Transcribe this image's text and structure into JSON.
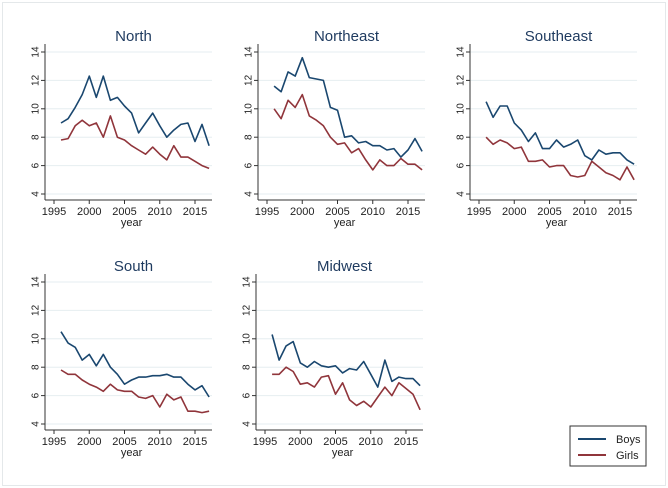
{
  "colors": {
    "boys": "#1a476f",
    "girls": "#90353b",
    "grid": "#e6eef0",
    "axis": "#333333",
    "title": "#1e3a5f"
  },
  "legend": {
    "boys": "Boys",
    "girls": "Girls",
    "placement": "bottom-right"
  },
  "chart_data": [
    {
      "type": "line",
      "title": "North",
      "xlabel": "year",
      "ylabel": "",
      "xlim": [
        1995,
        2018
      ],
      "ylim": [
        4,
        14
      ],
      "xticks": [
        "1995",
        "2000",
        "2005",
        "2010",
        "2015"
      ],
      "yticks": [
        "4",
        "6",
        "8",
        "10",
        "12",
        "14"
      ],
      "x": [
        1996,
        1997,
        1998,
        1999,
        2000,
        2001,
        2002,
        2003,
        2004,
        2005,
        2006,
        2007,
        2008,
        2009,
        2010,
        2011,
        2012,
        2013,
        2014,
        2015,
        2016,
        2017
      ],
      "series": [
        {
          "name": "Boys",
          "values": [
            9.0,
            9.3,
            10.1,
            11.0,
            12.3,
            10.8,
            12.3,
            10.6,
            10.8,
            10.2,
            9.7,
            8.3,
            9.0,
            9.7,
            8.8,
            8.0,
            8.5,
            8.9,
            9.0,
            7.7,
            8.9,
            7.4
          ]
        },
        {
          "name": "Girls",
          "values": [
            7.8,
            7.9,
            8.8,
            9.2,
            8.8,
            9.0,
            8.0,
            9.5,
            8.0,
            7.8,
            7.4,
            7.1,
            6.8,
            7.3,
            6.8,
            6.4,
            7.4,
            6.6,
            6.6,
            6.3,
            6.0,
            5.8
          ]
        }
      ]
    },
    {
      "type": "line",
      "title": "Northeast",
      "xlabel": "year",
      "ylabel": "",
      "xlim": [
        1995,
        2018
      ],
      "ylim": [
        4,
        14
      ],
      "xticks": [
        "1995",
        "2000",
        "2005",
        "2010",
        "2015"
      ],
      "yticks": [
        "4",
        "6",
        "8",
        "10",
        "12",
        "14"
      ],
      "x": [
        1996,
        1997,
        1998,
        1999,
        2000,
        2001,
        2002,
        2003,
        2004,
        2005,
        2006,
        2007,
        2008,
        2009,
        2010,
        2011,
        2012,
        2013,
        2014,
        2015,
        2016,
        2017
      ],
      "series": [
        {
          "name": "Boys",
          "values": [
            11.6,
            11.2,
            12.6,
            12.3,
            13.6,
            12.2,
            12.1,
            12.0,
            10.1,
            9.9,
            8.0,
            8.1,
            7.6,
            7.7,
            7.4,
            7.4,
            7.1,
            7.2,
            6.6,
            7.1,
            7.9,
            7.0
          ]
        },
        {
          "name": "Girls",
          "values": [
            10.0,
            9.3,
            10.6,
            10.1,
            11.0,
            9.5,
            9.2,
            8.8,
            8.0,
            7.5,
            7.6,
            6.9,
            7.2,
            6.4,
            5.7,
            6.4,
            6.0,
            6.0,
            6.5,
            6.1,
            6.1,
            5.7
          ]
        }
      ]
    },
    {
      "type": "line",
      "title": "Southeast",
      "xlabel": "year",
      "ylabel": "",
      "xlim": [
        1995,
        2018
      ],
      "ylim": [
        4,
        14
      ],
      "xticks": [
        "1995",
        "2000",
        "2005",
        "2010",
        "2015"
      ],
      "yticks": [
        "4",
        "6",
        "8",
        "10",
        "12",
        "14"
      ],
      "x": [
        1996,
        1997,
        1998,
        1999,
        2000,
        2001,
        2002,
        2003,
        2004,
        2005,
        2006,
        2007,
        2008,
        2009,
        2010,
        2011,
        2012,
        2013,
        2014,
        2015,
        2016,
        2017
      ],
      "series": [
        {
          "name": "Boys",
          "values": [
            10.5,
            9.4,
            10.2,
            10.2,
            9.0,
            8.5,
            7.7,
            8.3,
            7.2,
            7.2,
            7.8,
            7.3,
            7.5,
            7.8,
            6.7,
            6.4,
            7.1,
            6.8,
            6.9,
            6.9,
            6.4,
            6.1
          ]
        },
        {
          "name": "Girls",
          "values": [
            8.0,
            7.5,
            7.8,
            7.6,
            7.2,
            7.3,
            6.3,
            6.3,
            6.4,
            5.9,
            6.0,
            6.0,
            5.3,
            5.2,
            5.3,
            6.3,
            5.9,
            5.5,
            5.3,
            5.0,
            5.9,
            5.0
          ]
        }
      ]
    },
    {
      "type": "line",
      "title": "South",
      "xlabel": "year",
      "ylabel": "",
      "xlim": [
        1995,
        2018
      ],
      "ylim": [
        4,
        14
      ],
      "xticks": [
        "1995",
        "2000",
        "2005",
        "2010",
        "2015"
      ],
      "yticks": [
        "4",
        "6",
        "8",
        "10",
        "12",
        "14"
      ],
      "x": [
        1996,
        1997,
        1998,
        1999,
        2000,
        2001,
        2002,
        2003,
        2004,
        2005,
        2006,
        2007,
        2008,
        2009,
        2010,
        2011,
        2012,
        2013,
        2014,
        2015,
        2016,
        2017
      ],
      "series": [
        {
          "name": "Boys",
          "values": [
            10.5,
            9.7,
            9.4,
            8.5,
            8.9,
            8.1,
            8.9,
            8.0,
            7.5,
            6.8,
            7.1,
            7.3,
            7.3,
            7.4,
            7.4,
            7.5,
            7.3,
            7.3,
            6.8,
            6.4,
            6.7,
            5.9
          ]
        },
        {
          "name": "Girls",
          "values": [
            7.8,
            7.5,
            7.5,
            7.1,
            6.8,
            6.6,
            6.3,
            6.8,
            6.4,
            6.3,
            6.3,
            5.9,
            5.8,
            6.0,
            5.2,
            6.1,
            5.7,
            5.9,
            4.9,
            4.9,
            4.8,
            4.9
          ]
        }
      ]
    },
    {
      "type": "line",
      "title": "Midwest",
      "xlabel": "year",
      "ylabel": "",
      "xlim": [
        1995,
        2018
      ],
      "ylim": [
        4,
        14
      ],
      "xticks": [
        "1995",
        "2000",
        "2005",
        "2010",
        "2015"
      ],
      "yticks": [
        "4",
        "6",
        "8",
        "10",
        "12",
        "14"
      ],
      "x": [
        1996,
        1997,
        1998,
        1999,
        2000,
        2001,
        2002,
        2003,
        2004,
        2005,
        2006,
        2007,
        2008,
        2009,
        2010,
        2011,
        2012,
        2013,
        2014,
        2015,
        2016,
        2017
      ],
      "series": [
        {
          "name": "Boys",
          "values": [
            10.3,
            8.5,
            9.5,
            9.8,
            8.3,
            8.0,
            8.4,
            8.1,
            8.0,
            8.1,
            7.6,
            7.9,
            7.8,
            8.4,
            7.5,
            6.6,
            8.5,
            7.0,
            7.3,
            7.2,
            7.2,
            6.7
          ]
        },
        {
          "name": "Girls",
          "values": [
            7.5,
            7.5,
            8.0,
            7.7,
            6.8,
            6.9,
            6.6,
            7.3,
            7.4,
            6.1,
            6.9,
            5.7,
            5.3,
            5.6,
            5.2,
            5.9,
            6.6,
            6.0,
            6.9,
            6.5,
            6.1,
            5.0
          ]
        }
      ]
    }
  ]
}
